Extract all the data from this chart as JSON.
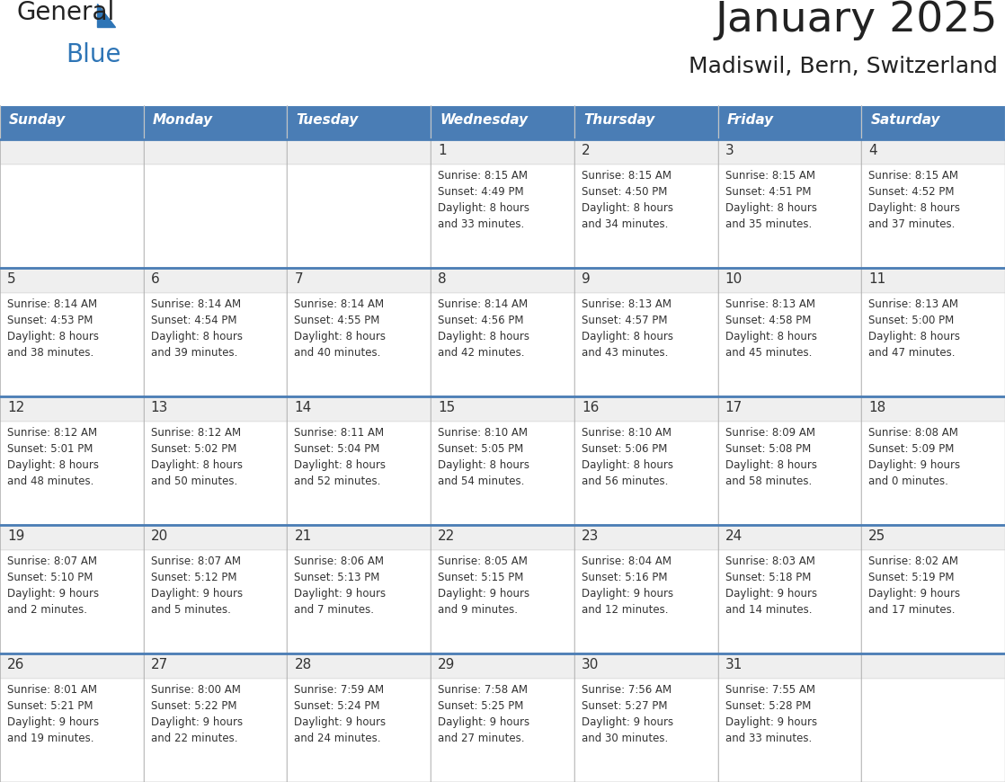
{
  "title": "January 2025",
  "subtitle": "Madiswil, Bern, Switzerland",
  "days_of_week": [
    "Sunday",
    "Monday",
    "Tuesday",
    "Wednesday",
    "Thursday",
    "Friday",
    "Saturday"
  ],
  "header_bg": "#4A7DB5",
  "header_text": "#FFFFFF",
  "cell_bg_gray": "#EFEFEF",
  "cell_bg_white": "#FFFFFF",
  "text_color": "#333333",
  "line_color": "#4A7DB5",
  "border_color": "#AAAAAA",
  "calendar": [
    [
      null,
      null,
      null,
      {
        "day": 1,
        "sunrise": "8:15 AM",
        "sunset": "4:49 PM",
        "daylight": "8 hours",
        "daylight2": "and 33 minutes."
      },
      {
        "day": 2,
        "sunrise": "8:15 AM",
        "sunset": "4:50 PM",
        "daylight": "8 hours",
        "daylight2": "and 34 minutes."
      },
      {
        "day": 3,
        "sunrise": "8:15 AM",
        "sunset": "4:51 PM",
        "daylight": "8 hours",
        "daylight2": "and 35 minutes."
      },
      {
        "day": 4,
        "sunrise": "8:15 AM",
        "sunset": "4:52 PM",
        "daylight": "8 hours",
        "daylight2": "and 37 minutes."
      }
    ],
    [
      {
        "day": 5,
        "sunrise": "8:14 AM",
        "sunset": "4:53 PM",
        "daylight": "8 hours",
        "daylight2": "and 38 minutes."
      },
      {
        "day": 6,
        "sunrise": "8:14 AM",
        "sunset": "4:54 PM",
        "daylight": "8 hours",
        "daylight2": "and 39 minutes."
      },
      {
        "day": 7,
        "sunrise": "8:14 AM",
        "sunset": "4:55 PM",
        "daylight": "8 hours",
        "daylight2": "and 40 minutes."
      },
      {
        "day": 8,
        "sunrise": "8:14 AM",
        "sunset": "4:56 PM",
        "daylight": "8 hours",
        "daylight2": "and 42 minutes."
      },
      {
        "day": 9,
        "sunrise": "8:13 AM",
        "sunset": "4:57 PM",
        "daylight": "8 hours",
        "daylight2": "and 43 minutes."
      },
      {
        "day": 10,
        "sunrise": "8:13 AM",
        "sunset": "4:58 PM",
        "daylight": "8 hours",
        "daylight2": "and 45 minutes."
      },
      {
        "day": 11,
        "sunrise": "8:13 AM",
        "sunset": "5:00 PM",
        "daylight": "8 hours",
        "daylight2": "and 47 minutes."
      }
    ],
    [
      {
        "day": 12,
        "sunrise": "8:12 AM",
        "sunset": "5:01 PM",
        "daylight": "8 hours",
        "daylight2": "and 48 minutes."
      },
      {
        "day": 13,
        "sunrise": "8:12 AM",
        "sunset": "5:02 PM",
        "daylight": "8 hours",
        "daylight2": "and 50 minutes."
      },
      {
        "day": 14,
        "sunrise": "8:11 AM",
        "sunset": "5:04 PM",
        "daylight": "8 hours",
        "daylight2": "and 52 minutes."
      },
      {
        "day": 15,
        "sunrise": "8:10 AM",
        "sunset": "5:05 PM",
        "daylight": "8 hours",
        "daylight2": "and 54 minutes."
      },
      {
        "day": 16,
        "sunrise": "8:10 AM",
        "sunset": "5:06 PM",
        "daylight": "8 hours",
        "daylight2": "and 56 minutes."
      },
      {
        "day": 17,
        "sunrise": "8:09 AM",
        "sunset": "5:08 PM",
        "daylight": "8 hours",
        "daylight2": "and 58 minutes."
      },
      {
        "day": 18,
        "sunrise": "8:08 AM",
        "sunset": "5:09 PM",
        "daylight": "9 hours",
        "daylight2": "and 0 minutes."
      }
    ],
    [
      {
        "day": 19,
        "sunrise": "8:07 AM",
        "sunset": "5:10 PM",
        "daylight": "9 hours",
        "daylight2": "and 2 minutes."
      },
      {
        "day": 20,
        "sunrise": "8:07 AM",
        "sunset": "5:12 PM",
        "daylight": "9 hours",
        "daylight2": "and 5 minutes."
      },
      {
        "day": 21,
        "sunrise": "8:06 AM",
        "sunset": "5:13 PM",
        "daylight": "9 hours",
        "daylight2": "and 7 minutes."
      },
      {
        "day": 22,
        "sunrise": "8:05 AM",
        "sunset": "5:15 PM",
        "daylight": "9 hours",
        "daylight2": "and 9 minutes."
      },
      {
        "day": 23,
        "sunrise": "8:04 AM",
        "sunset": "5:16 PM",
        "daylight": "9 hours",
        "daylight2": "and 12 minutes."
      },
      {
        "day": 24,
        "sunrise": "8:03 AM",
        "sunset": "5:18 PM",
        "daylight": "9 hours",
        "daylight2": "and 14 minutes."
      },
      {
        "day": 25,
        "sunrise": "8:02 AM",
        "sunset": "5:19 PM",
        "daylight": "9 hours",
        "daylight2": "and 17 minutes."
      }
    ],
    [
      {
        "day": 26,
        "sunrise": "8:01 AM",
        "sunset": "5:21 PM",
        "daylight": "9 hours",
        "daylight2": "and 19 minutes."
      },
      {
        "day": 27,
        "sunrise": "8:00 AM",
        "sunset": "5:22 PM",
        "daylight": "9 hours",
        "daylight2": "and 22 minutes."
      },
      {
        "day": 28,
        "sunrise": "7:59 AM",
        "sunset": "5:24 PM",
        "daylight": "9 hours",
        "daylight2": "and 24 minutes."
      },
      {
        "day": 29,
        "sunrise": "7:58 AM",
        "sunset": "5:25 PM",
        "daylight": "9 hours",
        "daylight2": "and 27 minutes."
      },
      {
        "day": 30,
        "sunrise": "7:56 AM",
        "sunset": "5:27 PM",
        "daylight": "9 hours",
        "daylight2": "and 30 minutes."
      },
      {
        "day": 31,
        "sunrise": "7:55 AM",
        "sunset": "5:28 PM",
        "daylight": "9 hours",
        "daylight2": "and 33 minutes."
      },
      null
    ]
  ]
}
